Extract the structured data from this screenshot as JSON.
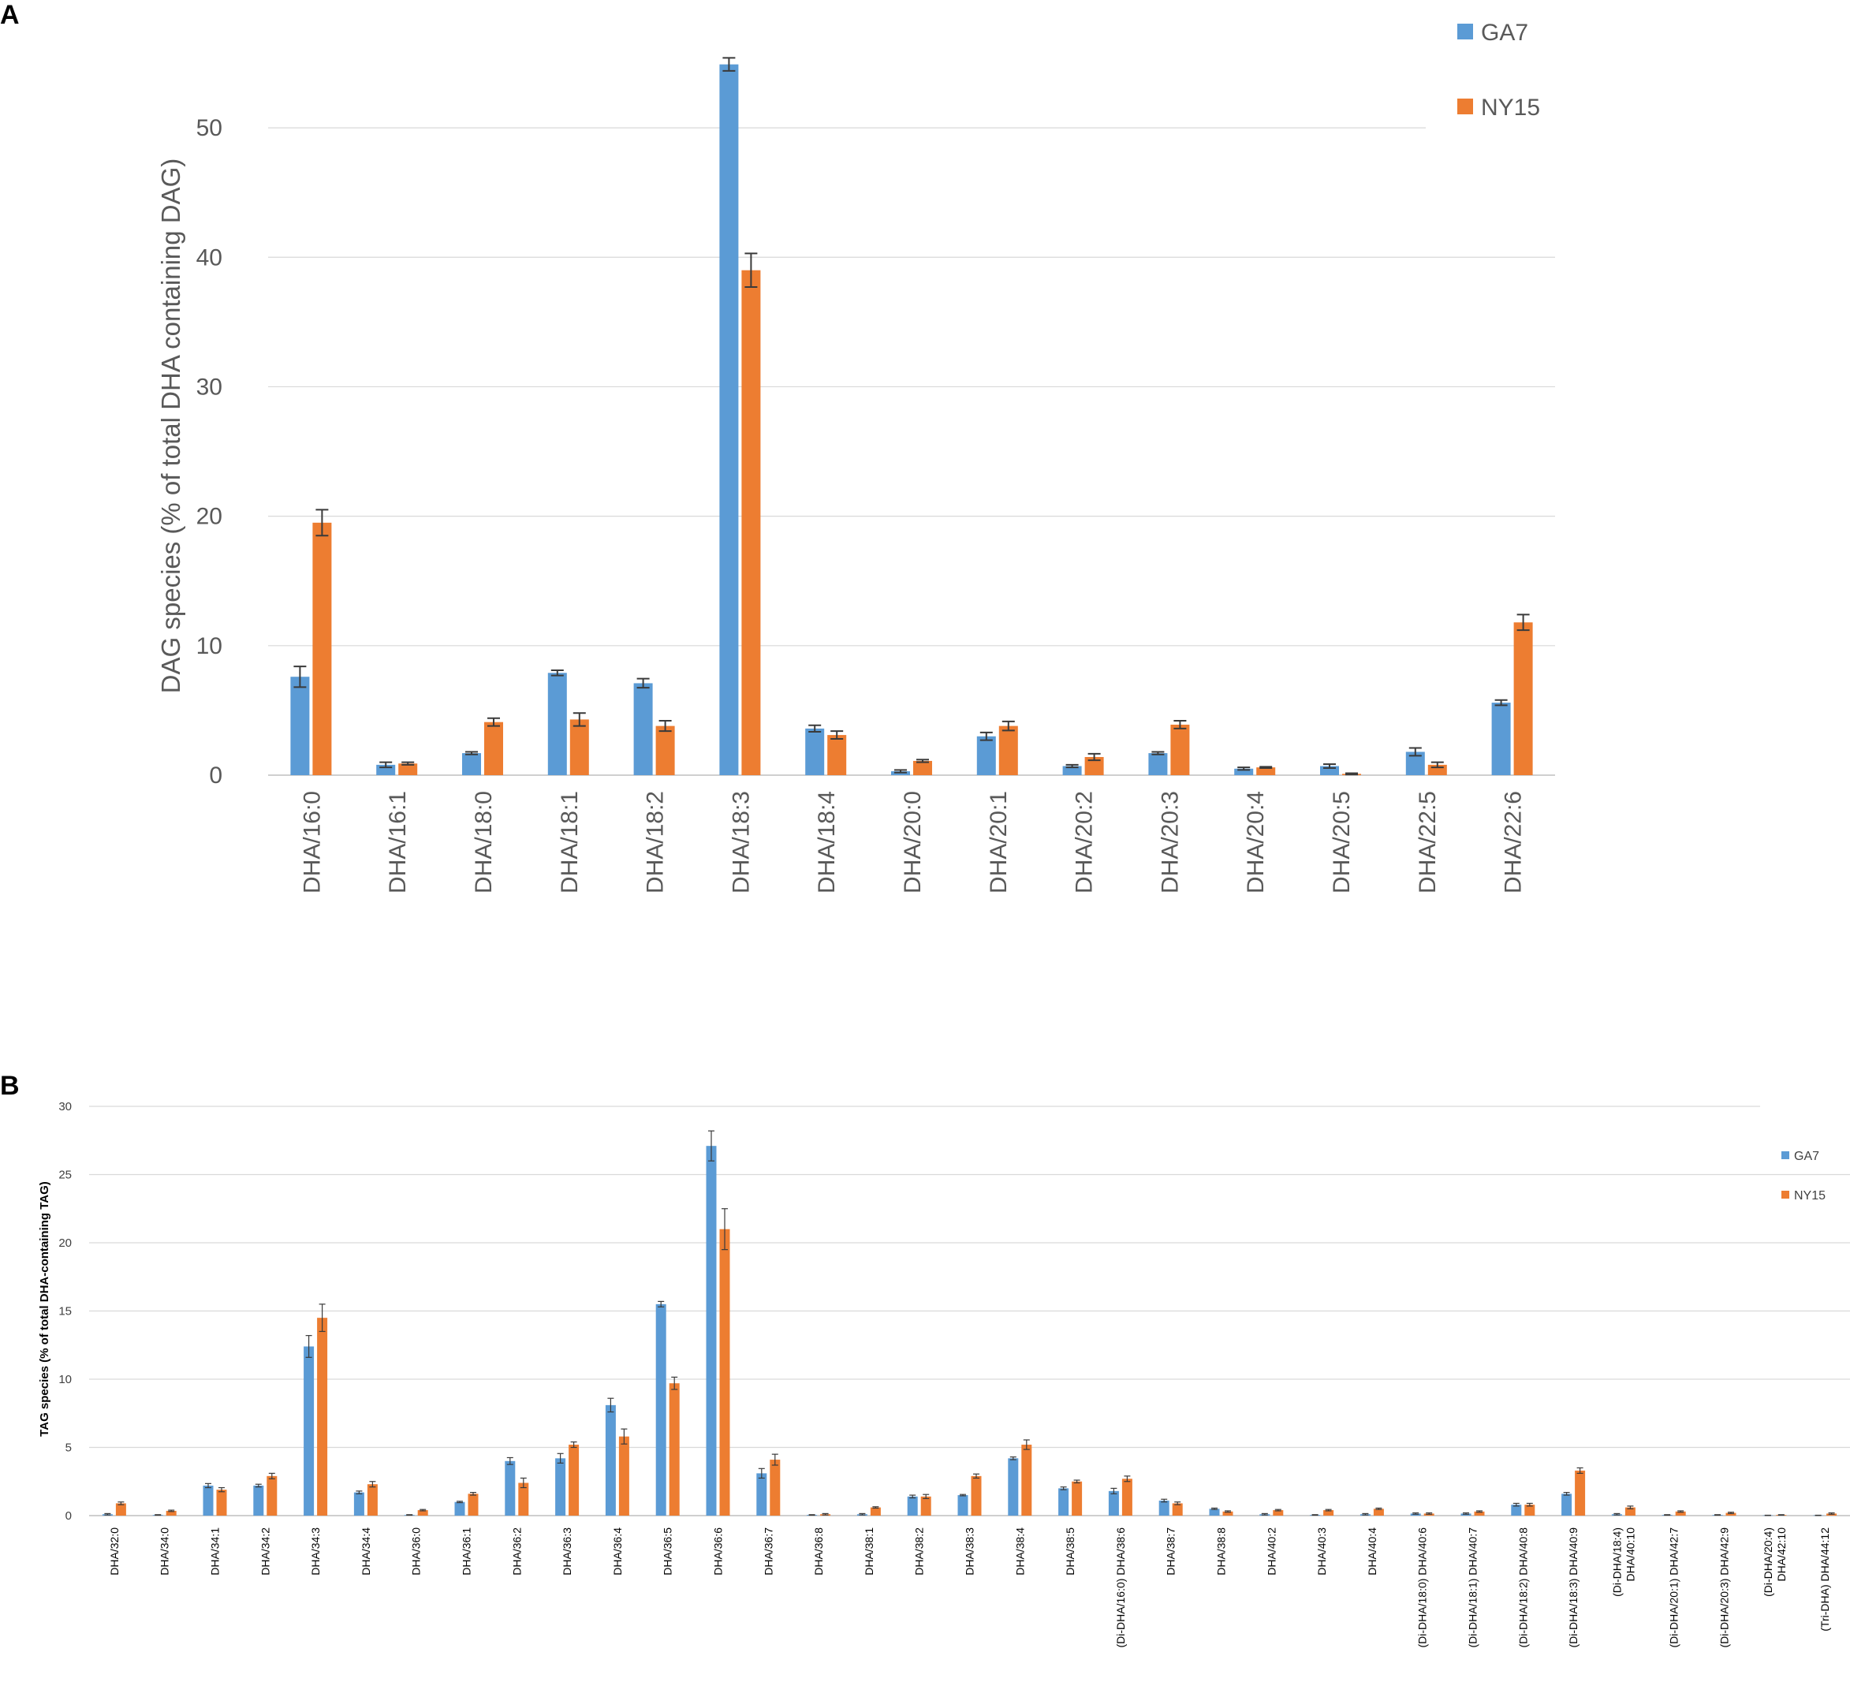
{
  "colors": {
    "GA7": "#5b9bd5",
    "NY15": "#ed7d31",
    "grid": "#d9d9d9",
    "errorbar": "#3a3a3a"
  },
  "chart_data": [
    {
      "panel": "A",
      "type": "bar",
      "ylabel": "DAG species (% of total DHA containing DAG)",
      "xlabel": "",
      "ylim": [
        0,
        55
      ],
      "yticks": [
        0,
        10,
        20,
        30,
        40,
        50
      ],
      "grid": true,
      "legend_position": "top-right",
      "categories": [
        "DHA/16:0",
        "DHA/16:1",
        "DHA/18:0",
        "DHA/18:1",
        "DHA/18:2",
        "DHA/18:3",
        "DHA/18:4",
        "DHA/20:0",
        "DHA/20:1",
        "DHA/20:2",
        "DHA/20:3",
        "DHA/20:4",
        "DHA/20:5",
        "DHA/22:5",
        "DHA/22:6"
      ],
      "series": [
        {
          "name": "GA7",
          "values": [
            7.6,
            0.8,
            1.7,
            7.9,
            7.1,
            54.9,
            3.6,
            0.3,
            3.0,
            0.7,
            1.7,
            0.5,
            0.7,
            1.8,
            5.6
          ],
          "errors": [
            0.8,
            0.2,
            0.1,
            0.2,
            0.35,
            0.5,
            0.25,
            0.1,
            0.3,
            0.1,
            0.1,
            0.1,
            0.15,
            0.3,
            0.2
          ]
        },
        {
          "name": "NY15",
          "values": [
            19.5,
            0.9,
            4.1,
            4.3,
            3.8,
            39.0,
            3.1,
            1.1,
            3.8,
            1.4,
            3.9,
            0.6,
            0.1,
            0.8,
            11.8
          ],
          "errors": [
            1.0,
            0.1,
            0.3,
            0.5,
            0.4,
            1.3,
            0.3,
            0.1,
            0.35,
            0.25,
            0.3,
            0.05,
            0.05,
            0.2,
            0.6
          ]
        }
      ]
    },
    {
      "panel": "B",
      "type": "bar",
      "ylabel": "TAG species (% of total DHA-containing TAG)",
      "xlabel": "",
      "ylim": [
        0,
        30
      ],
      "yticks": [
        0,
        5,
        10,
        15,
        20,
        25,
        30
      ],
      "grid": true,
      "legend_position": "top-right",
      "categories": [
        [
          "DHA/32:0"
        ],
        [
          "DHA/34:0"
        ],
        [
          "DHA/34:1"
        ],
        [
          "DHA/34:2"
        ],
        [
          "DHA/34:3"
        ],
        [
          "DHA/34:4"
        ],
        [
          "DHA/36:0"
        ],
        [
          "DHA/36:1"
        ],
        [
          "DHA/36:2"
        ],
        [
          "DHA/36:3"
        ],
        [
          "DHA/36:4"
        ],
        [
          "DHA/36:5"
        ],
        [
          "DHA/36:6"
        ],
        [
          "DHA/36:7"
        ],
        [
          "DHA/36:8"
        ],
        [
          "DHA/38:1"
        ],
        [
          "DHA/38:2"
        ],
        [
          "DHA/38:3"
        ],
        [
          "DHA/38:4"
        ],
        [
          "DHA/38:5"
        ],
        [
          "(Di-DHA/16:0) DHA/38:6"
        ],
        [
          "DHA/38:7"
        ],
        [
          "DHA/38:8"
        ],
        [
          "DHA/40:2"
        ],
        [
          "DHA/40:3"
        ],
        [
          "DHA/40:4"
        ],
        [
          "(Di-DHA/18:0) DHA/40:6"
        ],
        [
          "(Di-DHA/18:1) DHA/40:7"
        ],
        [
          "(Di-DHA/18:2) DHA/40:8"
        ],
        [
          "(Di-DHA/18:3) DHA/40:9"
        ],
        [
          "(Di-DHA/18:4)",
          "DHA/40:10"
        ],
        [
          "(Di-DHA/20:1) DHA/42:7"
        ],
        [
          "(Di-DHA/20:3) DHA/42:9"
        ],
        [
          "(Di-DHA/20:4)",
          "DHA/42:10"
        ],
        [
          "(Tri-DHA) DHA/44:12"
        ]
      ],
      "series": [
        {
          "name": "GA7",
          "values": [
            0.1,
            0.05,
            2.2,
            2.2,
            12.4,
            1.7,
            0.05,
            1.0,
            4.0,
            4.2,
            8.1,
            15.5,
            27.1,
            3.1,
            0.05,
            0.1,
            1.4,
            1.5,
            4.2,
            2.0,
            1.8,
            1.1,
            0.5,
            0.1,
            0.05,
            0.1,
            0.15,
            0.15,
            0.8,
            1.6,
            0.1,
            0.05,
            0.05,
            0.02,
            0.02
          ],
          "errors": [
            0.05,
            0.02,
            0.15,
            0.1,
            0.8,
            0.1,
            0.02,
            0.05,
            0.25,
            0.35,
            0.5,
            0.2,
            1.1,
            0.35,
            0.02,
            0.05,
            0.1,
            0.05,
            0.1,
            0.1,
            0.2,
            0.1,
            0.05,
            0.05,
            0.02,
            0.05,
            0.05,
            0.05,
            0.1,
            0.1,
            0.05,
            0.02,
            0.02,
            0.01,
            0.01
          ]
        },
        {
          "name": "NY15",
          "values": [
            0.9,
            0.35,
            1.9,
            2.9,
            14.5,
            2.3,
            0.4,
            1.6,
            2.4,
            5.2,
            5.8,
            9.7,
            21.0,
            4.1,
            0.1,
            0.6,
            1.4,
            2.9,
            5.2,
            2.5,
            2.7,
            0.9,
            0.3,
            0.4,
            0.4,
            0.5,
            0.15,
            0.3,
            0.8,
            3.3,
            0.6,
            0.3,
            0.2,
            0.05,
            0.15
          ],
          "errors": [
            0.1,
            0.05,
            0.15,
            0.2,
            1.0,
            0.2,
            0.05,
            0.1,
            0.35,
            0.2,
            0.55,
            0.45,
            1.5,
            0.4,
            0.05,
            0.05,
            0.15,
            0.15,
            0.35,
            0.1,
            0.2,
            0.1,
            0.05,
            0.05,
            0.05,
            0.05,
            0.05,
            0.05,
            0.1,
            0.2,
            0.1,
            0.05,
            0.05,
            0.02,
            0.05
          ]
        }
      ]
    }
  ]
}
